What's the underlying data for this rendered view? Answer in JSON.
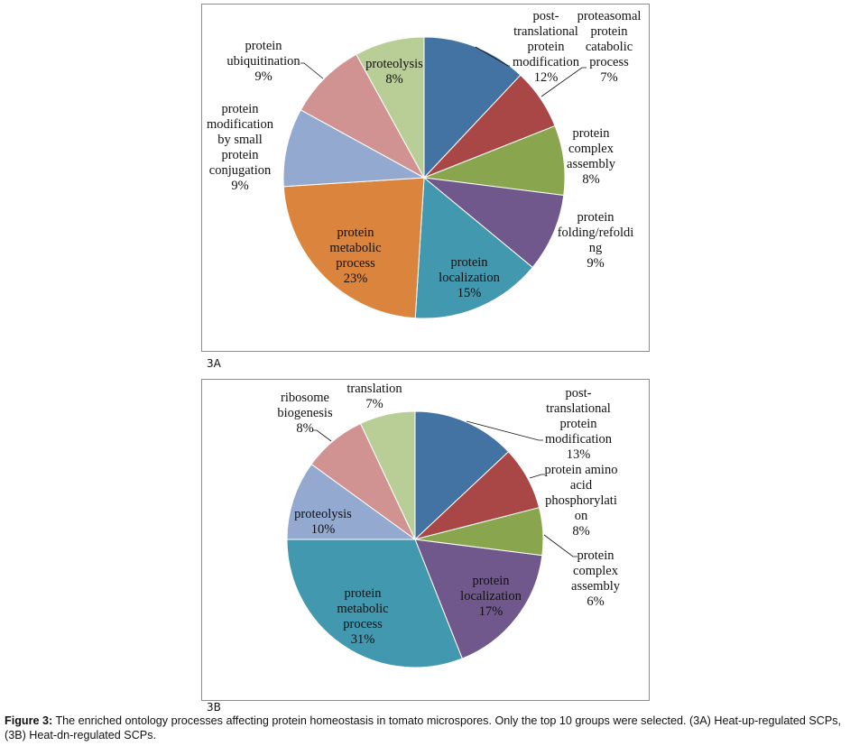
{
  "chart_data": [
    {
      "type": "pie",
      "panel": "3A",
      "title": "",
      "start": "12 o'clock, clockwise",
      "slices": [
        {
          "label": "post-translational protein modification",
          "lines": [
            "post-",
            "translational",
            "protein",
            "modification"
          ],
          "value": 12,
          "color": "#4273a2"
        },
        {
          "label": "proteasomal protein catabolic process",
          "lines": [
            "proteasomal",
            "protein",
            "catabolic",
            "process"
          ],
          "value": 7,
          "color": "#a94747"
        },
        {
          "label": "protein complex assembly",
          "lines": [
            "protein",
            "complex",
            "assembly"
          ],
          "value": 8,
          "color": "#89a54e"
        },
        {
          "label": "protein folding/refolding",
          "lines": [
            "protein",
            "folding/refoldi",
            "ng"
          ],
          "value": 9,
          "color": "#70578c"
        },
        {
          "label": "protein localization",
          "lines": [
            "protein",
            "localization"
          ],
          "value": 15,
          "color": "#4198af"
        },
        {
          "label": "protein metabolic process",
          "lines": [
            "protein",
            "metabolic",
            "process"
          ],
          "value": 23,
          "color": "#db843d"
        },
        {
          "label": "protein modification by small protein conjugation",
          "lines": [
            "protein",
            "modification",
            "by small",
            "protein",
            "conjugation"
          ],
          "value": 9,
          "color": "#93a9cf"
        },
        {
          "label": "protein ubiquitination",
          "lines": [
            "protein",
            "ubiquitination"
          ],
          "value": 9,
          "color": "#d19392"
        },
        {
          "label": "proteolysis",
          "lines": [
            "proteolysis"
          ],
          "value": 8,
          "color": "#b9cd96"
        }
      ]
    },
    {
      "type": "pie",
      "panel": "3B",
      "title": "",
      "start": "12 o'clock, clockwise",
      "slices": [
        {
          "label": "post-translational protein modification",
          "lines": [
            "post-",
            "translational",
            "protein",
            "modification"
          ],
          "value": 13,
          "color": "#4273a2"
        },
        {
          "label": "protein amino acid phosphorylation",
          "lines": [
            "protein amino",
            "acid",
            "phosphorylati",
            "on"
          ],
          "value": 8,
          "color": "#a94747"
        },
        {
          "label": "protein complex assembly",
          "lines": [
            "protein",
            "complex",
            "assembly"
          ],
          "value": 6,
          "color": "#89a54e"
        },
        {
          "label": "protein localization",
          "lines": [
            "protein",
            "localization"
          ],
          "value": 17,
          "color": "#70578c"
        },
        {
          "label": "protein metabolic process",
          "lines": [
            "protein",
            "metabolic",
            "process"
          ],
          "value": 31,
          "color": "#4198af"
        },
        {
          "label": "proteolysis",
          "lines": [
            "proteolysis"
          ],
          "value": 10,
          "color": "#93a9cf"
        },
        {
          "label": "ribosome biogenesis",
          "lines": [
            "ribosome",
            "biogenesis"
          ],
          "value": 8,
          "color": "#d19392"
        },
        {
          "label": "translation",
          "lines": [
            "translation"
          ],
          "value": 7,
          "color": "#b9cd96"
        }
      ]
    }
  ],
  "caption": {
    "label": "Figure 3:",
    "text": " The enriched ontology processes affecting protein homeostasis in tomato microspores. Only the top 10 groups were selected. (3A) Heat-up-regulated SCPs, (3B) Heat-dn-regulated SCPs."
  }
}
